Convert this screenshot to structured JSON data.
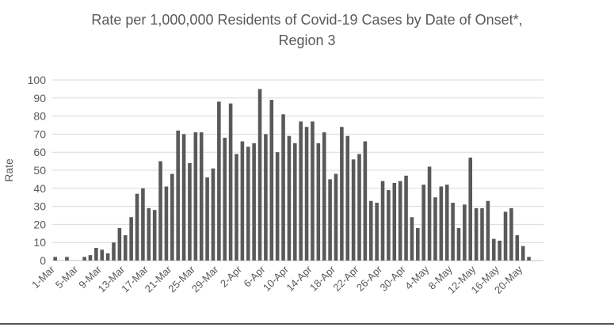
{
  "chart_data": {
    "type": "bar",
    "title_line1": "Rate per 1,000,000 Residents of Covid-19 Cases by Date of Onset*,",
    "title_line2": "Region 3",
    "xlabel": "",
    "ylabel": "Rate",
    "ylim": [
      0,
      100
    ],
    "yticks": [
      0,
      10,
      20,
      30,
      40,
      50,
      60,
      70,
      80,
      90,
      100
    ],
    "grid": true,
    "legend": "none",
    "bar_color": "#595959",
    "xtick_labels": [
      "1-Mar",
      "5-Mar",
      "9-Mar",
      "13-Mar",
      "17-Mar",
      "21-Mar",
      "25-Mar",
      "29-Mar",
      "2-Apr",
      "6-Apr",
      "10-Apr",
      "14-Apr",
      "18-Apr",
      "22-Apr",
      "26-Apr",
      "30-Apr",
      "4-May",
      "8-May",
      "12-May",
      "16-May",
      "20-May"
    ],
    "categories": [
      "1-Mar",
      "2-Mar",
      "3-Mar",
      "4-Mar",
      "5-Mar",
      "6-Mar",
      "7-Mar",
      "8-Mar",
      "9-Mar",
      "10-Mar",
      "11-Mar",
      "12-Mar",
      "13-Mar",
      "14-Mar",
      "15-Mar",
      "16-Mar",
      "17-Mar",
      "18-Mar",
      "19-Mar",
      "20-Mar",
      "21-Mar",
      "22-Mar",
      "23-Mar",
      "24-Mar",
      "25-Mar",
      "26-Mar",
      "27-Mar",
      "28-Mar",
      "29-Mar",
      "30-Mar",
      "31-Mar",
      "1-Apr",
      "2-Apr",
      "3-Apr",
      "4-Apr",
      "5-Apr",
      "6-Apr",
      "7-Apr",
      "8-Apr",
      "9-Apr",
      "10-Apr",
      "11-Apr",
      "12-Apr",
      "13-Apr",
      "14-Apr",
      "15-Apr",
      "16-Apr",
      "17-Apr",
      "18-Apr",
      "19-Apr",
      "20-Apr",
      "21-Apr",
      "22-Apr",
      "23-Apr",
      "24-Apr",
      "25-Apr",
      "26-Apr",
      "27-Apr",
      "28-Apr",
      "29-Apr",
      "30-Apr",
      "1-May",
      "2-May",
      "3-May",
      "4-May",
      "5-May",
      "6-May",
      "7-May",
      "8-May",
      "9-May",
      "10-May",
      "11-May",
      "12-May",
      "13-May",
      "14-May",
      "15-May",
      "16-May",
      "17-May",
      "18-May",
      "19-May",
      "20-May",
      "21-May",
      "22-May",
      "23-May"
    ],
    "values": [
      2,
      0,
      2,
      0,
      0,
      2,
      3,
      7,
      6,
      4,
      10,
      18,
      14,
      24,
      37,
      40,
      29,
      28,
      55,
      41,
      48,
      72,
      70,
      54,
      71,
      71,
      46,
      51,
      88,
      68,
      87,
      59,
      66,
      63,
      65,
      95,
      70,
      89,
      60,
      81,
      69,
      65,
      77,
      74,
      77,
      65,
      71,
      45,
      48,
      74,
      69,
      56,
      59,
      66,
      33,
      32,
      44,
      39,
      43,
      44,
      47,
      24,
      18,
      42,
      52,
      35,
      41,
      42,
      32,
      18,
      31,
      57,
      29,
      29,
      33,
      12,
      11,
      27,
      29,
      14,
      8,
      2,
      0,
      0
    ]
  }
}
